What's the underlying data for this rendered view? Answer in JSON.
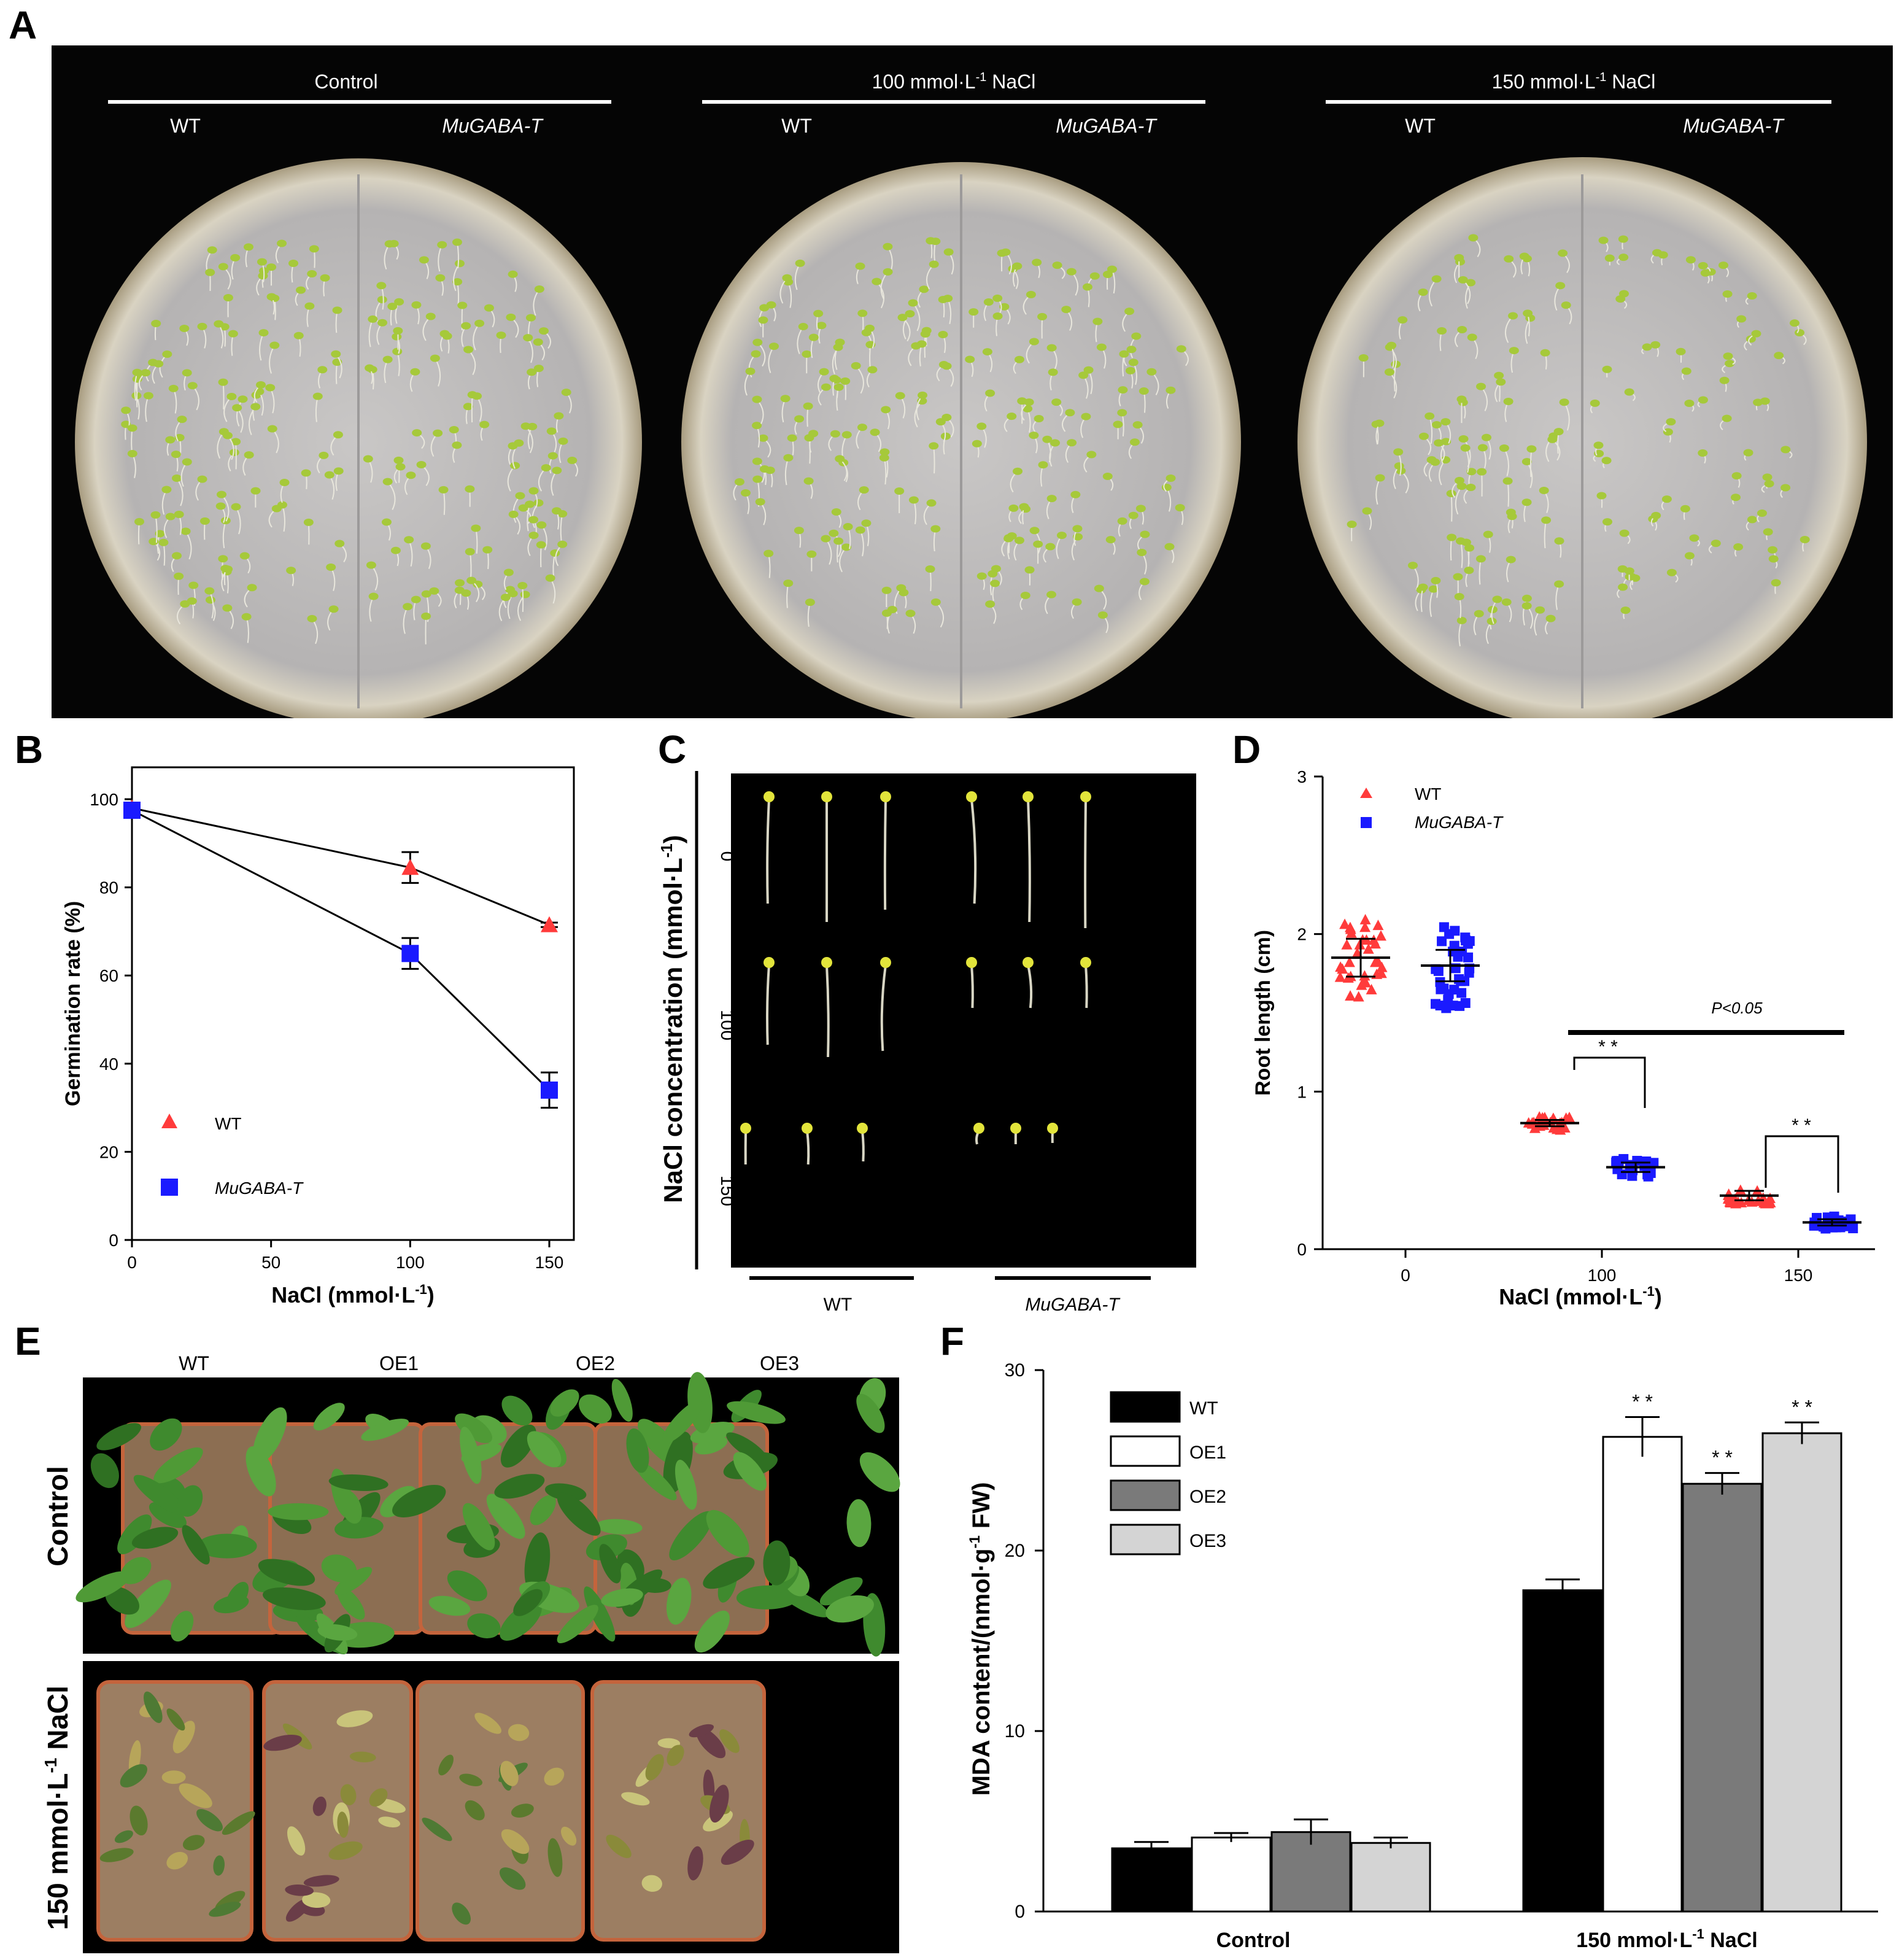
{
  "panel_letters": {
    "a": "A",
    "b": "B",
    "c": "C",
    "d": "D",
    "e": "E",
    "f": "F"
  },
  "panelA": {
    "plates": [
      {
        "title": "Control",
        "left": "WT",
        "right": "MuGABA-T"
      },
      {
        "title": "100 mmol·L-1 NaCl",
        "title_pre": "100 mmol·L",
        "title_sup": "-1",
        "title_post": " NaCl",
        "left": "WT",
        "right": "MuGABA-T"
      },
      {
        "title": "150 mmol·L-1 NaCl",
        "title_pre": "150 mmol·L",
        "title_sup": "-1",
        "title_post": " NaCl",
        "left": "WT",
        "right": "MuGABA-T"
      }
    ]
  },
  "panelC": {
    "ylabel_pre": "NaCl concentration (mmol·L",
    "ylabel_sup": "-1",
    "ylabel_post": ")",
    "rows": [
      "0",
      "100",
      "150"
    ],
    "groups": [
      "WT",
      "MuGABA-T"
    ]
  },
  "panelE": {
    "columns": [
      "WT",
      "OE1",
      "OE2",
      "OE3"
    ],
    "row1": "Control",
    "row2_pre": "150 mmol·L",
    "row2_sup": "-1",
    "row2_post": " NaCl"
  },
  "colors": {
    "wt": "#ff3b3b",
    "mugaba": "#1a1aff",
    "wt_bar": "#000000",
    "oe1": "#ffffff",
    "oe2": "#7a7a7a",
    "oe3": "#d4d4d4"
  },
  "chart_data": [
    {
      "id": "B",
      "type": "line",
      "ylabel": "Germination rate (%)",
      "xlabel_pre": "NaCl (mmol·L",
      "xlabel_sup": "-1",
      "xlabel_post": ")",
      "xlim": [
        0,
        150
      ],
      "ylim": [
        0,
        100
      ],
      "xticks": [
        "0",
        "50",
        "100",
        "150"
      ],
      "yticks": [
        "0",
        "20",
        "40",
        "60",
        "80",
        "100"
      ],
      "series": [
        {
          "name": "WT",
          "marker": "triangle",
          "x": [
            0,
            100,
            150
          ],
          "y": [
            98,
            84.5,
            71.5
          ],
          "err": [
            1,
            3.5,
            0.5
          ]
        },
        {
          "name": "MuGABA-T",
          "marker": "square",
          "x": [
            0,
            100,
            150
          ],
          "y": [
            97.5,
            65,
            34
          ],
          "err": [
            1,
            3.5,
            4
          ]
        }
      ]
    },
    {
      "id": "D",
      "type": "scatter",
      "ylabel": "Root  length (cm)",
      "xlabel_pre": "NaCl (mmol·L",
      "xlabel_sup": "-1",
      "xlabel_post": ")",
      "ylim": [
        0,
        3
      ],
      "categories": [
        "0",
        "100",
        "150"
      ],
      "yticks": [
        "0",
        "1",
        "2",
        "3"
      ],
      "series": [
        {
          "name": "WT",
          "marker": "triangle",
          "means": [
            1.85,
            0.8,
            0.34
          ],
          "sd": [
            0.12,
            0.02,
            0.03
          ],
          "spread": [
            0.25,
            0.05,
            0.05
          ]
        },
        {
          "name": "MuGABA-T",
          "marker": "square",
          "means": [
            1.8,
            0.52,
            0.17
          ],
          "sd": [
            0.1,
            0.03,
            0.02
          ],
          "spread": [
            0.28,
            0.06,
            0.04
          ]
        }
      ],
      "annotations": {
        "pvalue": "P<0.05",
        "sig1": "* *",
        "sig2": "* *"
      }
    },
    {
      "id": "F",
      "type": "bar",
      "ylabel_pre": "MDA content/(nmol·g",
      "ylabel_sup": "-1",
      "ylabel_post": " FW)",
      "ylim": [
        0,
        30
      ],
      "yticks": [
        "0",
        "10",
        "20",
        "30"
      ],
      "categories": [
        "Control",
        "150 mmol·L-1 NaCl"
      ],
      "category_labels": [
        {
          "pre": "Control",
          "sup": "",
          "post": ""
        },
        {
          "pre": "150 mmol·L",
          "sup": "-1",
          "post": " NaCl"
        }
      ],
      "series": [
        {
          "name": "WT",
          "values": [
            3.5,
            17.8
          ],
          "err": [
            0.35,
            0.6
          ],
          "sig": [
            "",
            ""
          ]
        },
        {
          "name": "OE1",
          "values": [
            4.1,
            26.3
          ],
          "err": [
            0.25,
            1.1
          ],
          "sig": [
            "",
            "* *"
          ]
        },
        {
          "name": "OE2",
          "values": [
            4.4,
            23.7
          ],
          "err": [
            0.7,
            0.6
          ],
          "sig": [
            "",
            "* *"
          ]
        },
        {
          "name": "OE3",
          "values": [
            3.8,
            26.5
          ],
          "err": [
            0.3,
            0.6
          ],
          "sig": [
            "",
            "* *"
          ]
        }
      ]
    }
  ]
}
